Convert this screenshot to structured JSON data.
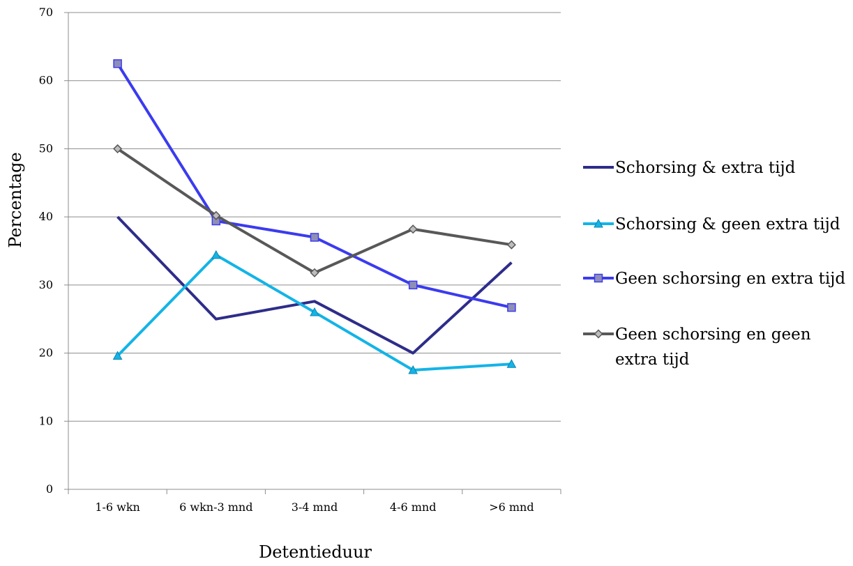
{
  "chart_data": {
    "type": "line",
    "title": "",
    "xlabel": "Detentieduur",
    "ylabel": "Percentage",
    "ylim": [
      0,
      70
    ],
    "yticks": [
      0,
      10,
      20,
      30,
      40,
      50,
      60,
      70
    ],
    "grid": true,
    "legend_position": "right",
    "categories": [
      "1-6 wkn",
      "6 wkn-3 mnd",
      "3-4 mnd",
      "4-6 mnd",
      ">6 mnd"
    ],
    "series": [
      {
        "name": "Schorsing & extra tijd",
        "legend_lines": [
          "Schorsing & extra tijd"
        ],
        "color": "#2e2d8a",
        "marker": "none",
        "values": [
          40,
          25,
          27.6,
          20,
          33.3
        ]
      },
      {
        "name": "Schorsing & geen extra tijd",
        "legend_lines": [
          "Schorsing & geen extra tijd"
        ],
        "color": "#13b4e6",
        "marker": "triangle",
        "values": [
          19.6,
          34.4,
          26,
          17.5,
          18.4
        ]
      },
      {
        "name": "Geen schorsing en extra tijd",
        "legend_lines": [
          "Geen schorsing en extra tijd"
        ],
        "color": "#3b3bef",
        "marker": "square",
        "values": [
          62.5,
          39.4,
          37,
          30,
          26.7
        ]
      },
      {
        "name": "Geen schorsing en geen extra tijd",
        "legend_lines": [
          "Geen schorsing en geen",
          "extra tijd"
        ],
        "color": "#585858",
        "marker": "diamond",
        "values": [
          50,
          40.2,
          31.8,
          38.2,
          35.9
        ]
      }
    ]
  }
}
